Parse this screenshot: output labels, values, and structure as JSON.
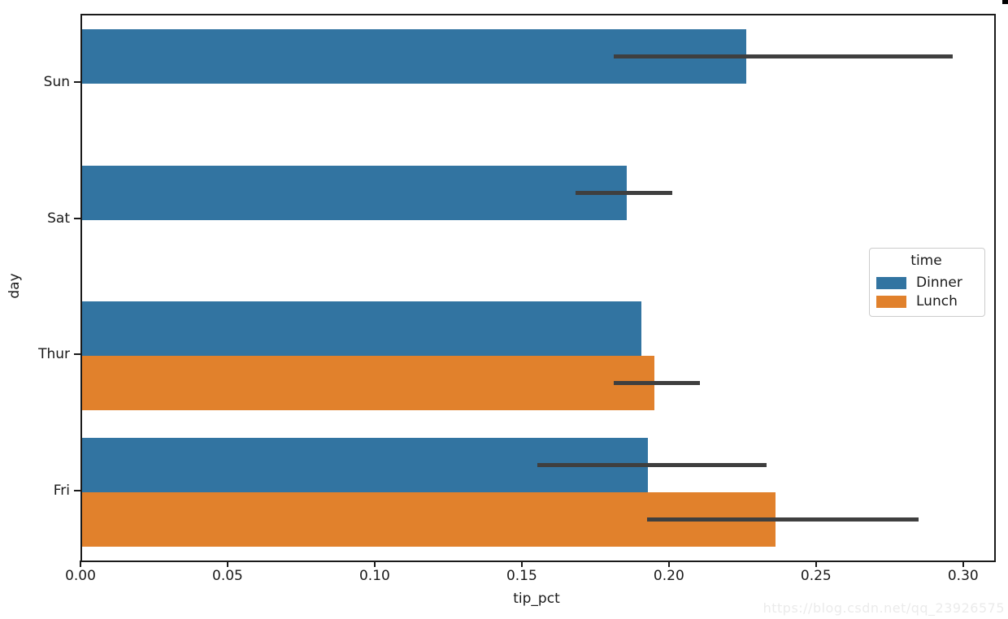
{
  "watermark": "https://blog.csdn.net/qq_23926575",
  "chart_data": {
    "type": "bar",
    "orientation": "horizontal",
    "title": "",
    "xlabel": "tip_pct",
    "ylabel": "day",
    "categories": [
      "Sun",
      "Sat",
      "Thur",
      "Fri"
    ],
    "x_tick_labels": [
      "0.00",
      "0.05",
      "0.10",
      "0.15",
      "0.20",
      "0.25",
      "0.30"
    ],
    "xlim": [
      0,
      0.31
    ],
    "grid": false,
    "bar_band_fraction": 0.8,
    "error_bar_color": "#3f3f3f",
    "series": [
      {
        "name": "Dinner",
        "color": "#3274a1",
        "values": [
          0.2257,
          0.1851,
          0.1901,
          0.1923
        ],
        "ci": [
          [
            0.1807,
            0.2959
          ],
          [
            0.1677,
            0.2006
          ],
          null,
          [
            0.1547,
            0.2326
          ]
        ]
      },
      {
        "name": "Lunch",
        "color": "#e1812c",
        "values": [
          null,
          null,
          0.1945,
          0.2356
        ],
        "ci": [
          null,
          null,
          [
            0.1807,
            0.2099
          ],
          [
            0.192,
            0.2843
          ]
        ]
      }
    ],
    "legend": {
      "title": "time",
      "position": "center right",
      "entries": [
        {
          "label": "Dinner",
          "color": "#3274a1"
        },
        {
          "label": "Lunch",
          "color": "#e1812c"
        }
      ]
    }
  }
}
